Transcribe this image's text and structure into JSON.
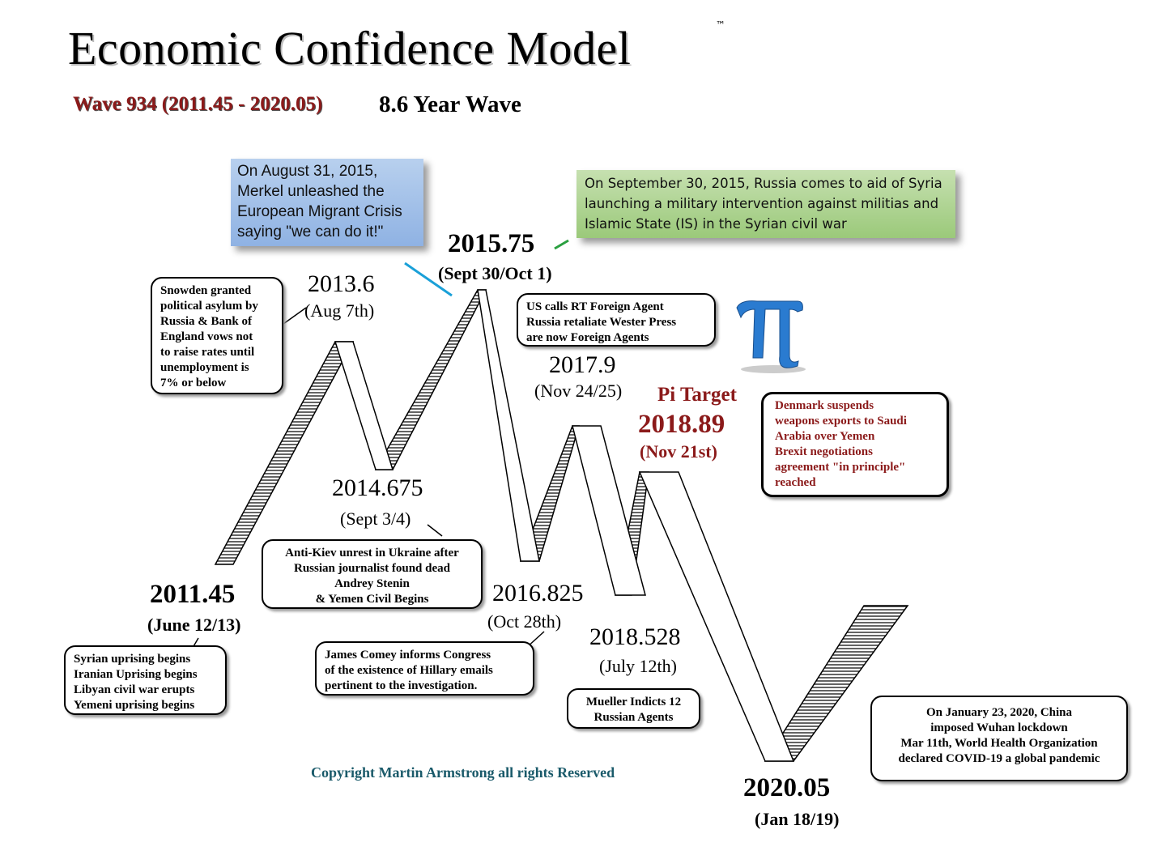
{
  "header": {
    "title": "Economic Confidence Model",
    "trademark": "™",
    "wave_label": "Wave 934 (2011.45 - 2020.05)",
    "wave_length": "8.6 Year Wave"
  },
  "turning_points": [
    {
      "value": "2011.45",
      "date": "(June 12/13)"
    },
    {
      "value": "2013.6",
      "date": "(Aug 7th)"
    },
    {
      "value": "2014.675",
      "date": "(Sept 3/4)"
    },
    {
      "value": "2015.75",
      "date": "(Sept 30/Oct 1)"
    },
    {
      "value": "2016.825",
      "date": "(Oct 28th)"
    },
    {
      "value": "2017.9",
      "date": "(Nov 24/25)"
    },
    {
      "value": "2018.528",
      "date": "(July 12th)"
    },
    {
      "value": "2018.89",
      "date": "(Nov 21st)"
    },
    {
      "value": "2020.05",
      "date": "(Jan 18/19)"
    }
  ],
  "pi_target_label": "Pi Target",
  "callouts": {
    "merkel": [
      "On August 31, 2015,",
      "Merkel unleashed the",
      "European Migrant Crisis",
      "saying \"we can do it!\""
    ],
    "russia_syria": [
      "On September 30, 2015, Russia comes to aid of Syria",
      "launching a military intervention against militias and",
      "Islamic State (IS) in the Syrian civil war"
    ]
  },
  "event_boxes": {
    "snowden": [
      "Snowden granted",
      "political asylum by",
      "Russia & Bank of",
      "England vows not",
      "to raise rates until",
      "unemployment is",
      "7% or below"
    ],
    "ukraine": [
      "Anti-Kiev unrest in Ukraine after",
      "Russian journalist found dead",
      "Andrey Stenin",
      "& Yemen Civil Begins"
    ],
    "syria_2011": [
      "Syrian uprising begins",
      "Iranian Uprising begins",
      "Libyan civil war erupts",
      "Yemeni uprising begins"
    ],
    "comey": [
      "James Comey informs Congress",
      "of the existence of Hillary emails",
      "pertinent to the investigation."
    ],
    "rt": [
      "US calls RT Foreign Agent",
      "Russia retaliate Wester Press",
      "are now Foreign Agents"
    ],
    "denmark": [
      "Denmark suspends",
      "weapons exports to Saudi",
      "Arabia over Yemen",
      "Brexit negotiations",
      "agreement \"in principle\"",
      "reached"
    ],
    "mueller": [
      "Mueller Indicts 12",
      "Russian Agents"
    ],
    "covid": [
      "On January 23, 2020, China",
      "imposed Wuhan lockdown",
      "Mar 11th, World Health Organization",
      "declared COVID-19 a global pandemic"
    ]
  },
  "copyright": "Copyright Martin Armstrong all rights Reserved",
  "colors": {
    "accent_red": "#8b1a1a",
    "pi_blue": "#1f6fc4",
    "callout_blue": "#9dbce8",
    "callout_green": "#a9d18e"
  }
}
